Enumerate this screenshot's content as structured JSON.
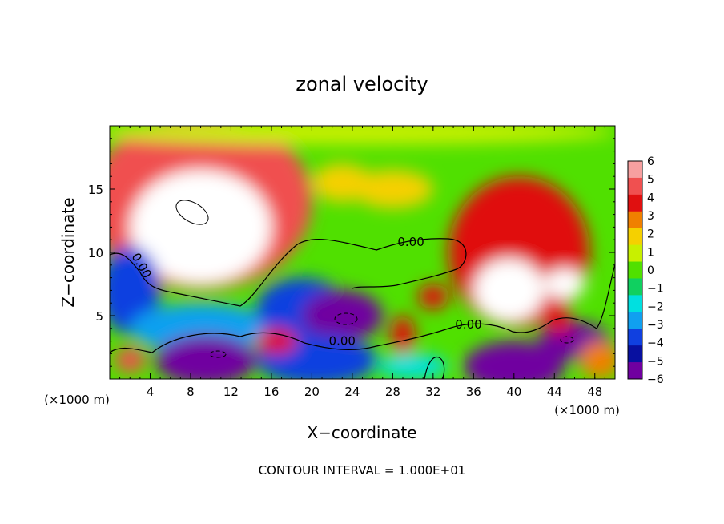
{
  "chart_data": {
    "type": "heatmap",
    "title": "zonal velocity",
    "xlabel": "X−coordinate",
    "ylabel": "Z−coordinate",
    "x_unit_left": "(×1000 m)",
    "x_unit_right": "(×1000 m)",
    "xlim": [
      0,
      50
    ],
    "ylim": [
      0,
      20
    ],
    "x_ticks": [
      4,
      8,
      12,
      16,
      20,
      24,
      28,
      32,
      36,
      40,
      44,
      48
    ],
    "y_ticks": [
      5,
      10,
      15
    ],
    "colorbar": {
      "levels": [
        6,
        5,
        4,
        3,
        2,
        1,
        0,
        -1,
        -2,
        -3,
        -4,
        -5,
        -6
      ],
      "labels": [
        "6",
        "5",
        "4",
        "3",
        "2",
        "1",
        "0",
        "−1",
        "−2",
        "−3",
        "−4",
        "−5",
        "−6"
      ],
      "colors": [
        "#f7a0a0",
        "#f05050",
        "#e01010",
        "#f08000",
        "#f5d000",
        "#c8f000",
        "#50e000",
        "#10d060",
        "#00e0e0",
        "#10a0f0",
        "#1040e0",
        "#0810a0",
        "#7000a0"
      ]
    },
    "contour_labels": [
      {
        "text": "0.00",
        "x": 29.8,
        "y": 10.5
      },
      {
        "text": "0.00",
        "x": 2.8,
        "y": 8.8,
        "rotate": 60
      },
      {
        "text": "0.00",
        "x": 35.5,
        "y": 4.0
      },
      {
        "text": "0.00",
        "x": 23.0,
        "y": 2.7
      }
    ],
    "contour_interval_label": "CONTOUR INTERVAL = 1.000E+01",
    "field_blobs": [
      {
        "x": 9.0,
        "y": 14.0,
        "rx": 11.0,
        "ry": 7.0,
        "v": 5
      },
      {
        "x": 9.0,
        "y": 12.0,
        "rx": 7.0,
        "ry": 4.5,
        "v": 9
      },
      {
        "x": 40.5,
        "y": 10.0,
        "rx": 7.0,
        "ry": 6.0,
        "v": 4
      },
      {
        "x": 39.5,
        "y": 7.0,
        "rx": 3.5,
        "ry": 2.5,
        "v": 7
      },
      {
        "x": 45.0,
        "y": 7.5,
        "rx": 2.0,
        "ry": 1.2,
        "v": 7
      },
      {
        "x": 23.0,
        "y": 15.5,
        "rx": 3.0,
        "ry": 1.5,
        "v": 2
      },
      {
        "x": 28.0,
        "y": 15.0,
        "rx": 4.0,
        "ry": 1.5,
        "v": 2
      },
      {
        "x": 24.0,
        "y": 19.5,
        "rx": 26.0,
        "ry": 1.0,
        "v": 1
      },
      {
        "x": 2.0,
        "y": 7.0,
        "rx": 3.0,
        "ry": 3.5,
        "v": -4
      },
      {
        "x": 9.0,
        "y": 4.0,
        "rx": 7.0,
        "ry": 2.0,
        "v": -3
      },
      {
        "x": 19.0,
        "y": 5.5,
        "rx": 4.5,
        "ry": 2.5,
        "v": -4
      },
      {
        "x": 23.0,
        "y": 5.0,
        "rx": 4.0,
        "ry": 2.0,
        "v": -7
      },
      {
        "x": 20.5,
        "y": 1.5,
        "rx": 6.0,
        "ry": 2.0,
        "v": -4
      },
      {
        "x": 9.5,
        "y": 1.5,
        "rx": 5.0,
        "ry": 2.0,
        "v": -7
      },
      {
        "x": 40.0,
        "y": 1.0,
        "rx": 5.0,
        "ry": 2.0,
        "v": -7
      },
      {
        "x": 46.0,
        "y": 3.0,
        "rx": 3.5,
        "ry": 1.5,
        "v": -6
      },
      {
        "x": 29.0,
        "y": 3.5,
        "rx": 1.2,
        "ry": 1.5,
        "v": 4
      },
      {
        "x": 32.0,
        "y": 6.5,
        "rx": 1.5,
        "ry": 1.0,
        "v": 4
      },
      {
        "x": 2.0,
        "y": 1.5,
        "rx": 1.5,
        "ry": 1.0,
        "v": 5
      },
      {
        "x": 16.5,
        "y": 3.0,
        "rx": 2.0,
        "ry": 1.0,
        "v": 4
      },
      {
        "x": 48.5,
        "y": 1.5,
        "rx": 2.0,
        "ry": 1.5,
        "v": 3
      },
      {
        "x": 30.0,
        "y": 1.0,
        "rx": 3.5,
        "ry": 1.0,
        "v": -2
      },
      {
        "x": 44.5,
        "y": 4.5,
        "rx": 1.2,
        "ry": 1.0,
        "v": 4
      }
    ]
  }
}
